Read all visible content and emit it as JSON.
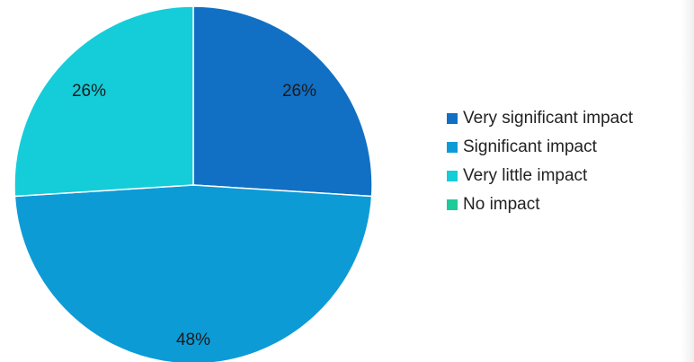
{
  "chart_data": {
    "type": "pie",
    "title": "",
    "categories": [
      "Very significant impact",
      "Significant impact",
      "Very little impact",
      "No impact"
    ],
    "values": [
      26,
      48,
      26,
      0
    ],
    "value_labels": [
      "26%",
      "48%",
      "26%",
      ""
    ],
    "colors": [
      "#1170c4",
      "#0d9bd6",
      "#14cdd9",
      "#1dcb9a"
    ],
    "legend_position": "right"
  }
}
